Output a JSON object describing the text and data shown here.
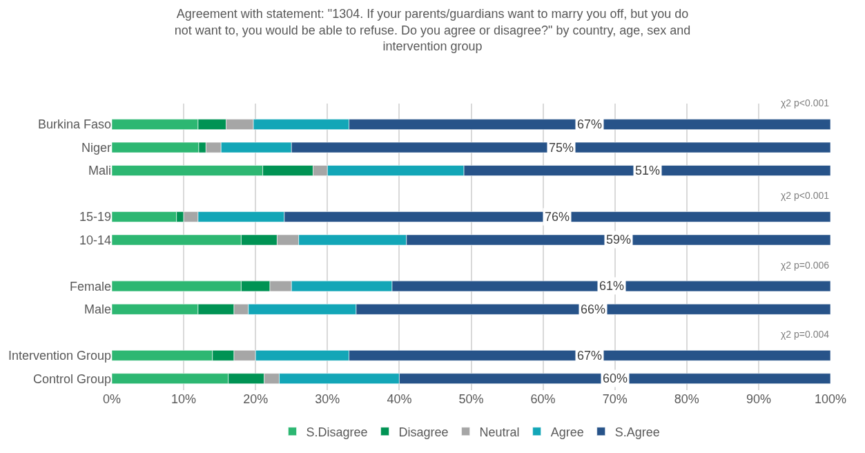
{
  "chart_data": {
    "type": "bar",
    "orientation": "horizontal",
    "stacked": true,
    "title": "Agreement with statement: \"1304. If your parents/guardians want to marry you off, but you do not want to, you would be able to refuse. Do you agree or disagree?\" by country, age, sex and intervention group",
    "categories": [
      "Burkina Faso",
      "Niger",
      "Mali",
      null,
      "15-19",
      "10-14",
      null,
      "Female",
      "Male",
      null,
      "Intervention Group",
      "Control Group"
    ],
    "series": [
      {
        "name": "S.Disagree",
        "color": "#2db772",
        "values": [
          12,
          12.1,
          21,
          null,
          9,
          18,
          null,
          18,
          12,
          null,
          14,
          16.2
        ]
      },
      {
        "name": "Disagree",
        "color": "#009354",
        "values": [
          3.9,
          1,
          7,
          null,
          1,
          5,
          null,
          4,
          5,
          null,
          3,
          5
        ]
      },
      {
        "name": "Neutral",
        "color": "#a6a6a6",
        "values": [
          3.8,
          2.1,
          2,
          null,
          2,
          3,
          null,
          3,
          2,
          null,
          3,
          2.1
        ]
      },
      {
        "name": "Agree",
        "color": "#13a6b7",
        "values": [
          13.3,
          9.8,
          19,
          null,
          12,
          15,
          null,
          14,
          15,
          null,
          13,
          16.7
        ]
      },
      {
        "name": "S.Agree",
        "color": "#275389",
        "values": [
          67,
          75,
          51,
          null,
          76,
          59,
          null,
          61,
          66,
          null,
          67,
          60
        ],
        "value_labels": [
          "67%",
          "75%",
          "51%",
          null,
          "76%",
          "59%",
          null,
          "61%",
          "66%",
          null,
          "67%",
          "60%"
        ]
      }
    ],
    "xlim": [
      0,
      100
    ],
    "xticks": [
      {
        "value": 0,
        "label": "0%"
      },
      {
        "value": 10,
        "label": "10%"
      },
      {
        "value": 20,
        "label": "20%"
      },
      {
        "value": 30,
        "label": "30%"
      },
      {
        "value": 40,
        "label": "40%"
      },
      {
        "value": 50,
        "label": "50%"
      },
      {
        "value": 60,
        "label": "60%"
      },
      {
        "value": 70,
        "label": "70%"
      },
      {
        "value": 80,
        "label": "80%"
      },
      {
        "value": 90,
        "label": "90%"
      },
      {
        "value": 100,
        "label": "100%"
      }
    ],
    "annotations": [
      "χ2 p<0.001",
      "χ2 p<0.001",
      "χ2 p=0.006",
      "χ2 p=0.004"
    ],
    "grid": "x",
    "legend": "bottom"
  }
}
